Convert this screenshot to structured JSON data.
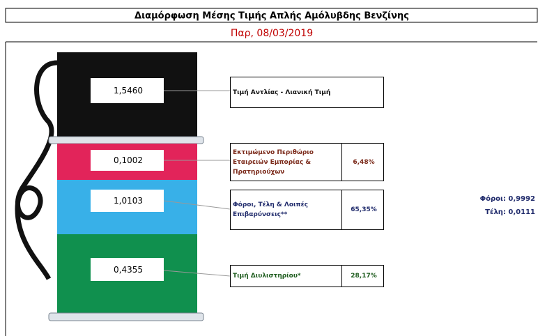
{
  "header": {
    "title": "Διαμόρφωση Μέσης Τιμής Απλής Αμόλυβδης Βενζίνης",
    "date": "Παρ, 08/03/2019"
  },
  "pump": [
    {
      "value": "1,5460",
      "label": "Τιμή Αντλίας - Λιανική Τιμή"
    },
    {
      "value": "0,1002",
      "label": "Εκτιμώμενο Περιθώριο Εταιρειών Εμπορίας & Πρατηριούχων",
      "share": "6,48%"
    },
    {
      "value": "1,0103",
      "label": "Φόροι, Τέλη & Λοιπές Επιβαρύνσεις**",
      "share": "65,35%"
    },
    {
      "value": "0,4355",
      "label": "Τιμή Διυλιστηρίου*",
      "share": "28,17%"
    }
  ],
  "breakdown": [
    {
      "label": "Φόροι:",
      "value": "0,9992"
    },
    {
      "label": "Τέλη:",
      "value": "0,0111"
    }
  ]
}
